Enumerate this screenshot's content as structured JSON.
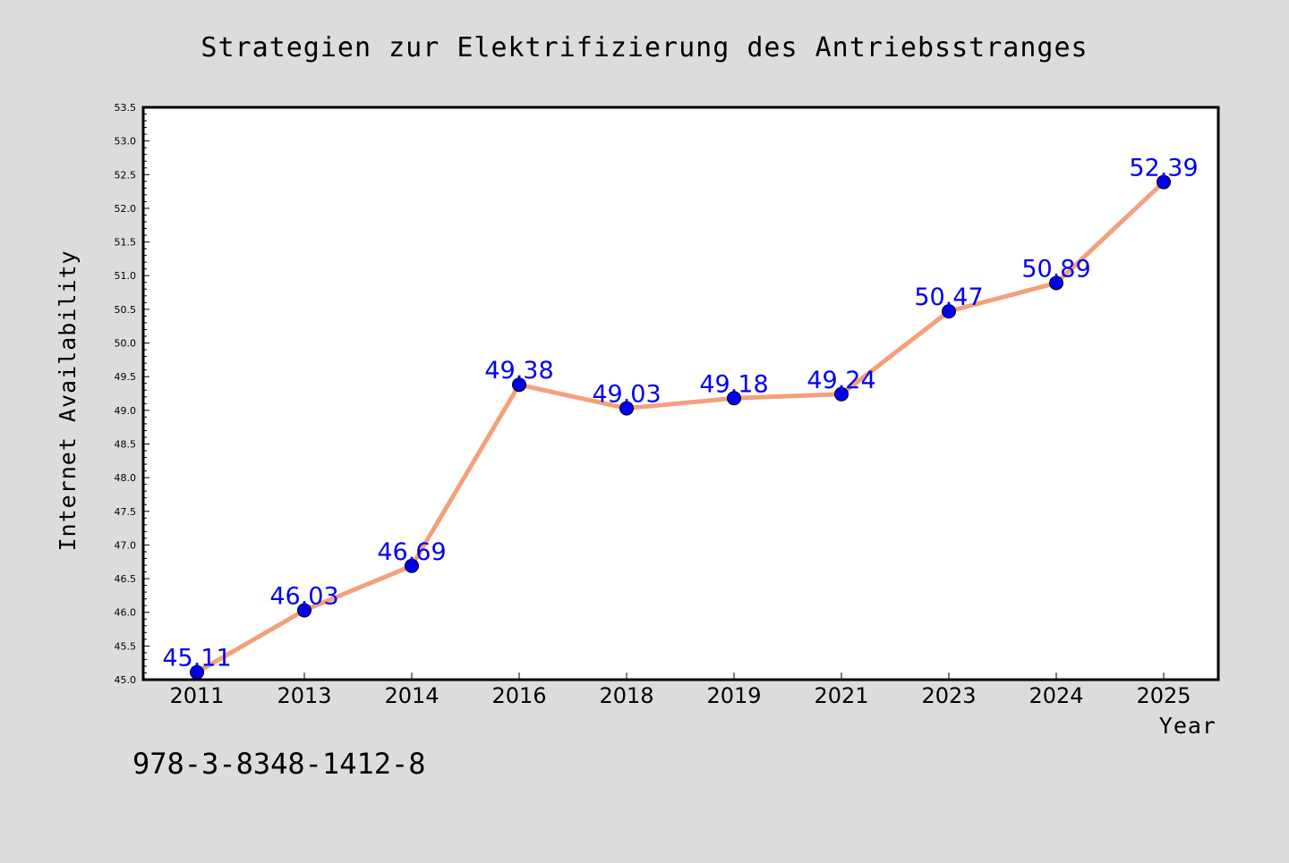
{
  "chart_data": {
    "type": "line",
    "title": "Strategien zur Elektrifizierung des Antriebsstranges",
    "xlabel": "Year",
    "ylabel": "Internet Availability",
    "categories": [
      "2011",
      "2013",
      "2014",
      "2016",
      "2018",
      "2019",
      "2021",
      "2023",
      "2024",
      "2025"
    ],
    "series": [
      {
        "values": [
          45.11,
          46.03,
          46.69,
          49.38,
          49.03,
          49.18,
          49.24,
          50.47,
          50.89,
          52.39
        ],
        "data_labels": [
          "45.11",
          "46.03",
          "46.69",
          "49.38",
          "49.03",
          "49.18",
          "49.24",
          "50.47",
          "50.89",
          "52.39"
        ],
        "line_color": "#f4a07c",
        "marker_color": "#0000ee"
      }
    ],
    "ylim": [
      45.0,
      53.5
    ],
    "yticks": [
      "45.0",
      "45.5",
      "46.0",
      "46.5",
      "47.0",
      "47.5",
      "48.0",
      "48.5",
      "49.0",
      "49.5",
      "50.0",
      "50.5",
      "51.0",
      "51.5",
      "52.0",
      "52.5",
      "53.0",
      "53.5"
    ],
    "grid": false,
    "legend": "none"
  },
  "footnote": "978-3-8348-1412-8",
  "colors": {
    "background": "#dcdcdc",
    "plot_area": "#ffffff",
    "axis": "#000000"
  }
}
